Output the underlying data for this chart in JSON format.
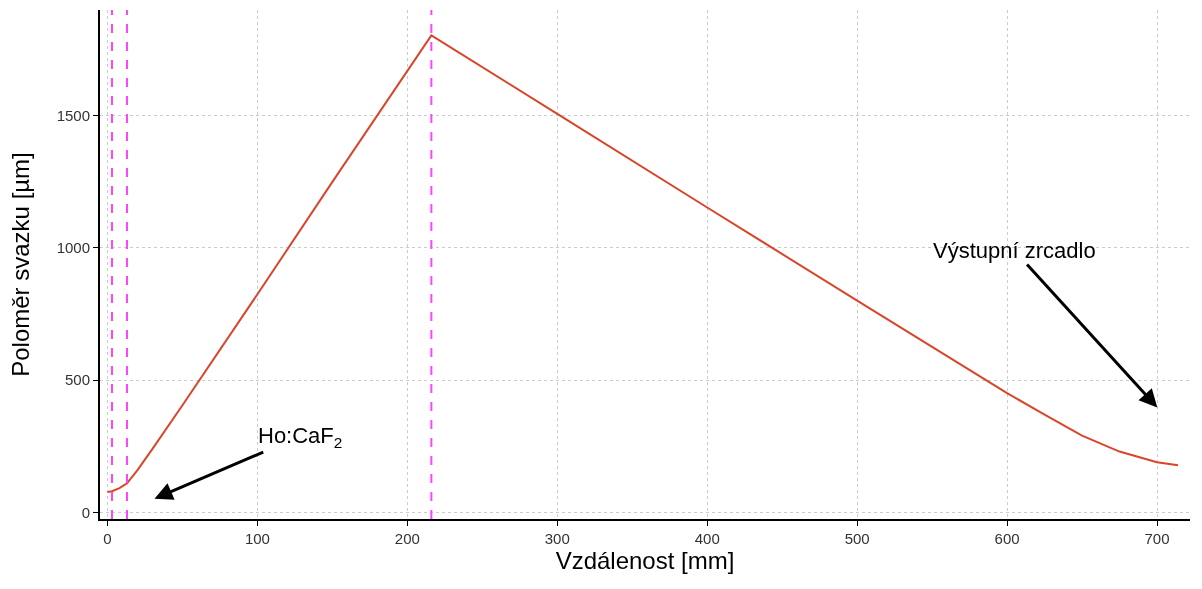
{
  "chart_data": {
    "type": "line",
    "xlabel": "Vzdálenost [mm]",
    "ylabel": "Poloměr svazku [µm]",
    "x": [
      0,
      3,
      8,
      13,
      20,
      30,
      50,
      100,
      150,
      216,
      300,
      400,
      500,
      600,
      625,
      650,
      675,
      700,
      714
    ],
    "series": [
      {
        "color": "#d9452b",
        "values": [
          77,
          80,
          92,
          110,
          160,
          240,
          405,
          825,
          1250,
          1804,
          1507,
          1153,
          801,
          451,
          370,
          290,
          230,
          190,
          178
        ]
      }
    ],
    "xlim": [
      -5,
      722
    ],
    "ylim": [
      -25,
      1900
    ],
    "xticks": [
      0,
      100,
      200,
      300,
      400,
      500,
      600,
      700
    ],
    "yticks": [
      0,
      500,
      1000,
      1500
    ],
    "grid": true,
    "marker": "none",
    "line_style": "solid",
    "ref_lines": [
      {
        "axis": "x",
        "value": 3,
        "color": "#ff44ff",
        "line_style": "dashed"
      },
      {
        "axis": "x",
        "value": 13,
        "color": "#ff44ff",
        "line_style": "dashed"
      },
      {
        "axis": "x",
        "value": 216,
        "color": "#ff44ff",
        "line_style": "dashed"
      }
    ],
    "annotations": [
      "Ho:CaF$_{2}$",
      "Výstupní zrcadlo"
    ]
  }
}
